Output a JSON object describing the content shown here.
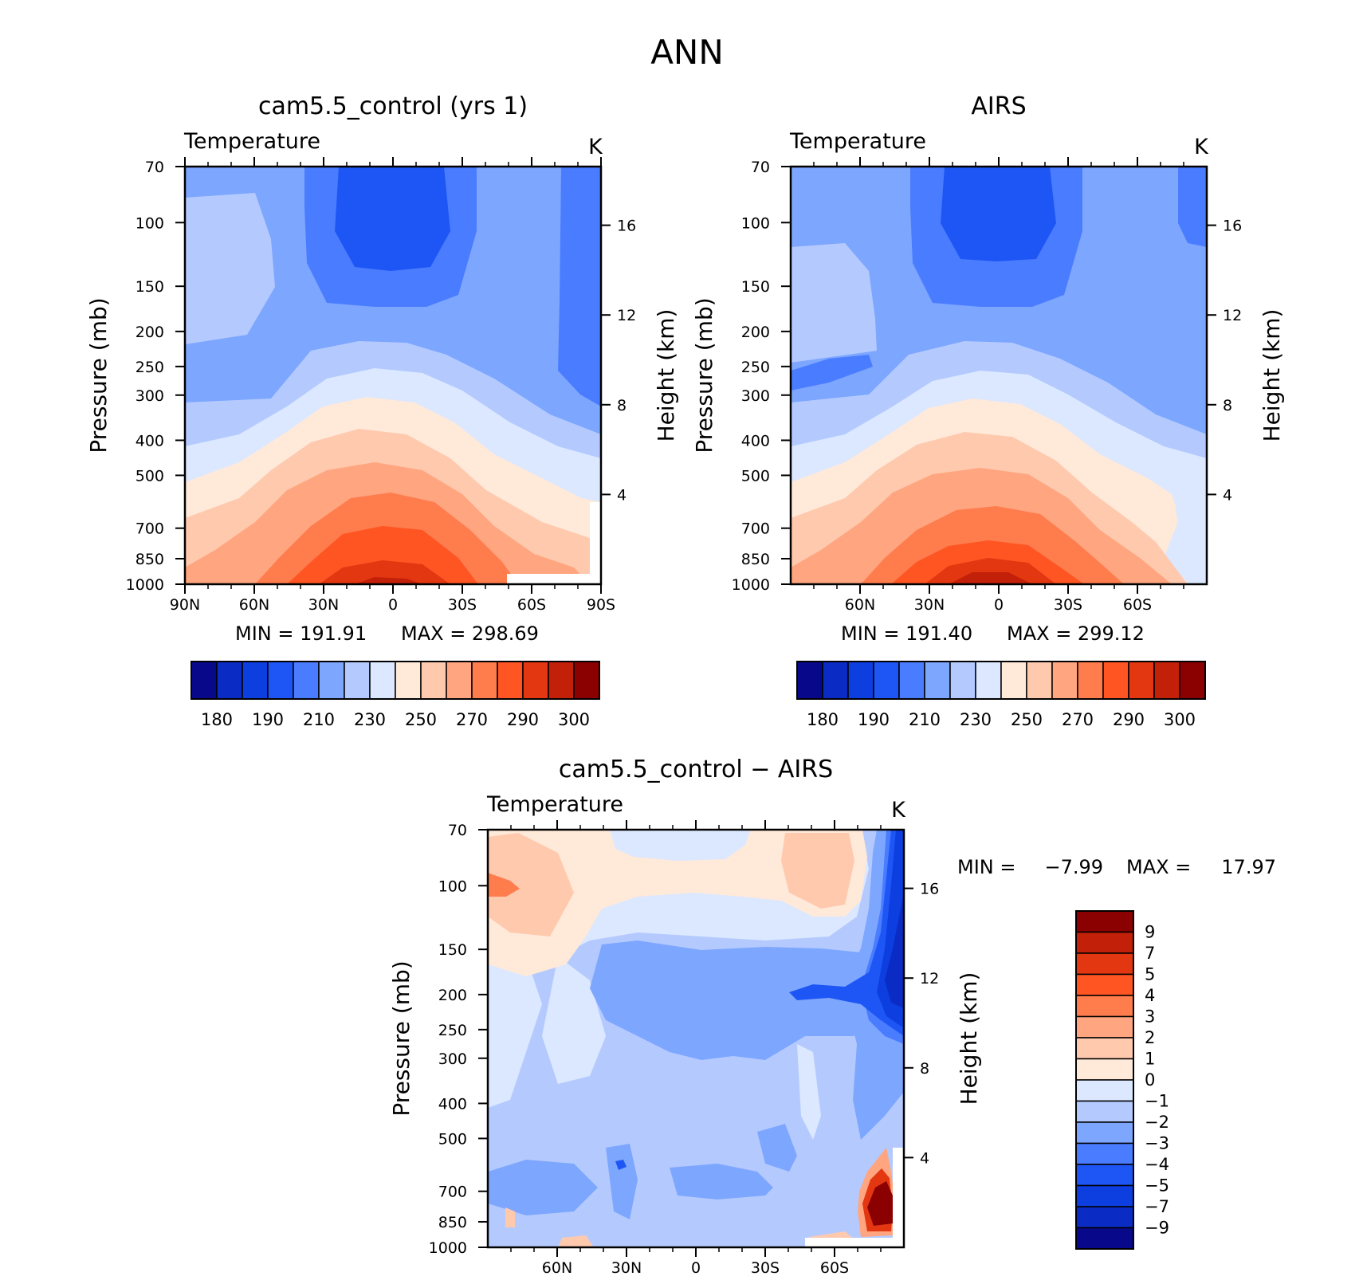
{
  "figure": {
    "title": "ANN"
  },
  "palettes": {
    "abs": [
      "#08088a",
      "#0a2cc4",
      "#0d3ee0",
      "#1e56f5",
      "#4a7cff",
      "#7da6ff",
      "#b4caff",
      "#dbe8ff",
      "#ffe9d9",
      "#ffc9ae",
      "#ffa57f",
      "#ff7c4d",
      "#ff5522",
      "#e33711",
      "#c22009",
      "#8b0000"
    ],
    "diff": [
      "#8b0000",
      "#c22009",
      "#e33711",
      "#ff5522",
      "#ff7c4d",
      "#ffa57f",
      "#ffc9ae",
      "#ffe9d9",
      "#dbe8ff",
      "#b4caff",
      "#7da6ff",
      "#4a7cff",
      "#1e56f5",
      "#0d3ee0",
      "#0a2cc4",
      "#08088a"
    ]
  },
  "chart_data": [
    {
      "type": "heatmap",
      "panel": "model",
      "title": "cam5.5_control (yrs 1)",
      "subtitle_left": "Temperature",
      "subtitle_right": "K",
      "ylabel": "Pressure (mb)",
      "ylabel_right": "Height (km)",
      "x_ticks": [
        "90N",
        "60N",
        "30N",
        "0",
        "30S",
        "60S",
        "90S"
      ],
      "y_ticks": [
        "70",
        "100",
        "150",
        "200",
        "250",
        "300",
        "400",
        "500",
        "700",
        "850",
        "1000"
      ],
      "height_ticks": [
        "16",
        "12",
        "8",
        "4"
      ],
      "min_label": "MIN  =  191.91",
      "max_label": "MAX  =  298.69",
      "min": 191.91,
      "max": 298.69,
      "colorbar_labels": [
        "180",
        "190",
        "210",
        "230",
        "250",
        "270",
        "290",
        "300"
      ]
    },
    {
      "type": "heatmap",
      "panel": "obs",
      "title": "AIRS",
      "subtitle_left": "Temperature",
      "subtitle_right": "K",
      "ylabel": "Pressure (mb)",
      "ylabel_right": "Height (km)",
      "x_ticks": [
        "60N",
        "30N",
        "0",
        "30S",
        "60S"
      ],
      "y_ticks": [
        "70",
        "100",
        "150",
        "200",
        "250",
        "300",
        "400",
        "500",
        "700",
        "850",
        "1000"
      ],
      "height_ticks": [
        "16",
        "12",
        "8",
        "4"
      ],
      "min_label": "MIN  =  191.40",
      "max_label": "MAX  =  299.12",
      "min": 191.4,
      "max": 299.12,
      "colorbar_labels": [
        "180",
        "190",
        "210",
        "230",
        "250",
        "270",
        "290",
        "300"
      ]
    },
    {
      "type": "heatmap",
      "panel": "diff",
      "title": "cam5.5_control − AIRS",
      "subtitle_left": "Temperature",
      "subtitle_right": "K",
      "ylabel": "Pressure (mb)",
      "ylabel_right": "Height (km)",
      "x_ticks": [
        "60N",
        "30N",
        "0",
        "30S",
        "60S"
      ],
      "y_ticks": [
        "70",
        "100",
        "150",
        "200",
        "250",
        "300",
        "400",
        "500",
        "700",
        "850",
        "1000"
      ],
      "height_ticks": [
        "16",
        "12",
        "8",
        "4"
      ],
      "min_label": "MIN  =",
      "min_value": "−7.99",
      "max_label": "MAX  =",
      "max_value": "17.97",
      "min": -7.99,
      "max": 17.97,
      "colorbar_labels": [
        "9",
        "7",
        "5",
        "4",
        "3",
        "2",
        "1",
        "0",
        "−1",
        "−2",
        "−3",
        "−4",
        "−5",
        "−7",
        "−9"
      ]
    }
  ]
}
